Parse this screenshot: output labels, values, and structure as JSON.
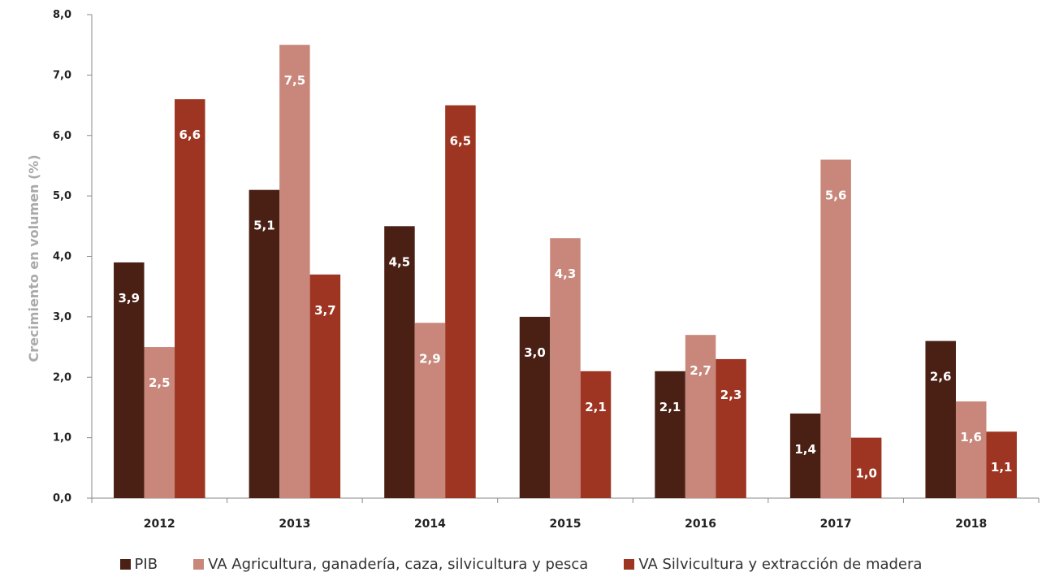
{
  "chart_data": {
    "type": "bar",
    "title": "",
    "xlabel": "",
    "ylabel": "Crecimiento en volumen (%)",
    "ylim": [
      0,
      8
    ],
    "yticks": [
      "0,0",
      "1,0",
      "2,0",
      "3,0",
      "4,0",
      "5,0",
      "6,0",
      "7,0",
      "8,0"
    ],
    "grid": false,
    "legend_position": "bottom",
    "categories": [
      "2012",
      "2013",
      "2014",
      "2015",
      "2016",
      "2017",
      "2018"
    ],
    "series": [
      {
        "name": "PIB",
        "color": "#4a2015",
        "values": [
          3.9,
          5.1,
          4.5,
          3.0,
          2.1,
          1.4,
          2.6
        ],
        "labels": [
          "3,9",
          "5,1",
          "4,5",
          "3,0",
          "2,1",
          "1,4",
          "2,6"
        ]
      },
      {
        "name": "VA Agricultura, ganadería, caza, silvicultura y pesca",
        "color": "#c8877a",
        "values": [
          2.5,
          7.5,
          2.9,
          4.3,
          2.7,
          5.6,
          1.6
        ],
        "labels": [
          "2,5",
          "7,5",
          "2,9",
          "4,3",
          "2,7",
          "5,6",
          "1,6"
        ]
      },
      {
        "name": "VA Silvicultura y extracción de madera",
        "color": "#9e3522",
        "values": [
          6.6,
          3.7,
          6.5,
          2.1,
          2.3,
          1.0,
          1.1
        ],
        "labels": [
          "6,6",
          "3,7",
          "6,5",
          "2,1",
          "2,3",
          "1,0",
          "1,1"
        ]
      }
    ]
  }
}
